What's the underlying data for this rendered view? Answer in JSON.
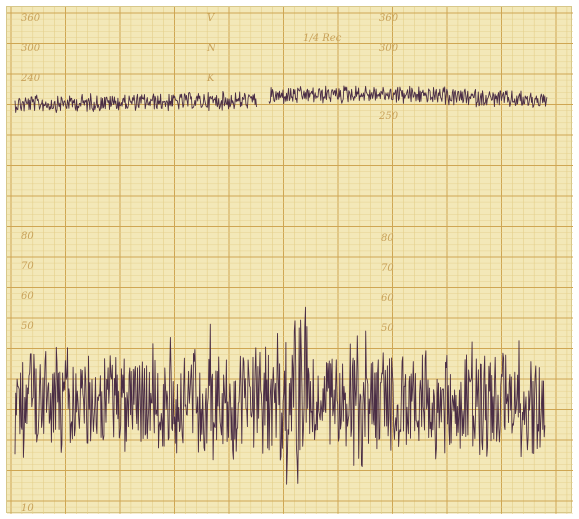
{
  "image": {
    "subject": "paper chart recording strip",
    "colors": {
      "paper": "#f3e8b8",
      "grid_fine": "#e4cf8b",
      "grid_major": "#cfa653",
      "trace": "#4a2d45"
    }
  },
  "upper_channel": {
    "scale_labels_left": [
      "360",
      "300",
      "240"
    ],
    "scale_labels_right": [
      "360",
      "300",
      "250"
    ],
    "letters_center": [
      "V",
      "N",
      "K"
    ],
    "annotation": "1/4 Rec"
  },
  "lower_channel": {
    "scale_labels_left": [
      "80",
      "70",
      "60",
      "50",
      "10"
    ],
    "scale_labels_right": [
      "80",
      "70",
      "60",
      "50"
    ]
  }
}
